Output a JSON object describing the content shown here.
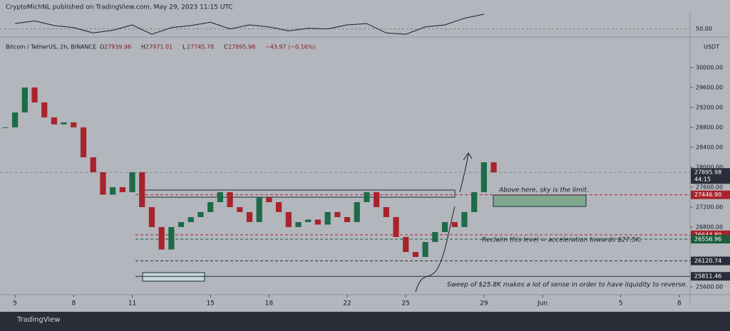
{
  "header": {
    "publisher": "CryptoMichNL published on TradingView.com, May 29, 2023 11:15 UTC"
  },
  "footer": {
    "brand": "TradingView"
  },
  "chart_data": {
    "type": "candlestick",
    "legend": {
      "symbol": "Bitcoin / TetherUS, 2h, BINANCE",
      "open_prefix": "O",
      "open": 27939.96,
      "high_prefix": "H",
      "high": 27971.01,
      "low_prefix": "L",
      "low": 27745.78,
      "close_prefix": "C",
      "close": 27895.98,
      "change": "−43.97 (−0.16%)"
    },
    "currency": "USDT",
    "countdown": "44:15",
    "up_color": "#1d6b47",
    "down_color": "#a8232b",
    "x": [
      4.5,
      5,
      5.5,
      6,
      6.5,
      7,
      7.5,
      8,
      8.5,
      9,
      9.5,
      10,
      10.5,
      11,
      11.5,
      12,
      12.5,
      13,
      13.5,
      14,
      14.5,
      15,
      15.5,
      16,
      16.5,
      17,
      17.5,
      18,
      18.5,
      19,
      19.5,
      20,
      20.5,
      21,
      21.5,
      22,
      22.5,
      23,
      23.5,
      24,
      24.5,
      25,
      25.5,
      26,
      26.5,
      27,
      27.5,
      28,
      28.5,
      29,
      29.5
    ],
    "values": [
      28800,
      29100,
      29600,
      29300,
      29000,
      28860,
      28900,
      28800,
      28200,
      27900,
      27450,
      27600,
      27500,
      27900,
      27200,
      26800,
      26350,
      26800,
      26900,
      27000,
      27100,
      27300,
      27500,
      27200,
      27100,
      26900,
      27400,
      27300,
      27100,
      26800,
      26900,
      26950,
      26850,
      27100,
      27000,
      26900,
      27300,
      27500,
      27200,
      27000,
      26600,
      26300,
      26200,
      26500,
      26700,
      26900,
      26800,
      27100,
      27500,
      28100,
      27895.98
    ],
    "xlim": [
      4.23,
      39.55
    ],
    "xticks": [
      5,
      8,
      11,
      15,
      18,
      22,
      25,
      29,
      {
        "value": 32,
        "label": "Jun"
      },
      {
        "value": 36,
        "label": "5"
      },
      {
        "value": 39,
        "label": "8"
      }
    ],
    "ylim": [
      25500,
      30570
    ],
    "yticks": [
      {
        "value": 25600,
        "label": "25600.00"
      },
      {
        "value": 26800,
        "label": "26800.00"
      },
      {
        "value": 27200,
        "label": "27200.00"
      },
      {
        "value": 27600,
        "label": "27600.00"
      },
      {
        "value": 28000,
        "label": "28000.00"
      },
      {
        "value": 28400,
        "label": "28400.00"
      },
      {
        "value": 28800,
        "label": "28800.00"
      },
      {
        "value": 29200,
        "label": "29200.00"
      },
      {
        "value": 29600,
        "label": "29600.00"
      },
      {
        "value": 30000,
        "label": "30000.00"
      }
    ],
    "levels": [
      {
        "value": 27895.98,
        "color": "#2a2e39"
      },
      {
        "value": 27446.9,
        "label": "27446.90",
        "color": "#a8232b"
      },
      {
        "value": 26644.8,
        "label": "26644.80",
        "color": "#a8232b"
      },
      {
        "value": 26556.96,
        "color": "#1d5c3c"
      },
      {
        "value": 26120.74,
        "color": "#2a2e39"
      },
      {
        "value": 25811.46,
        "color": "#2a2e39"
      }
    ],
    "annotations": [
      "Above here, sky is the limit.",
      "Reclaim this level = acceleration towards $27.5K.",
      "Sweep of $25.8K makes a lot of sense in order to have liquidity to reverse."
    ],
    "rsi": {
      "x": [
        5,
        6,
        7,
        8,
        9,
        10,
        11,
        12,
        13,
        14,
        15,
        16,
        17,
        18,
        19,
        20,
        21,
        22,
        23,
        24,
        25,
        26,
        27,
        28,
        29
      ],
      "values": [
        58,
        62,
        55,
        52,
        44,
        48,
        56,
        42,
        52,
        55,
        60,
        50,
        56,
        53,
        47,
        51,
        50,
        56,
        58,
        44,
        42,
        53,
        56,
        66,
        72
      ],
      "ylim": [
        40,
        72
      ],
      "yticks": [
        {
          "value": 50,
          "label": "50.00"
        }
      ]
    }
  }
}
